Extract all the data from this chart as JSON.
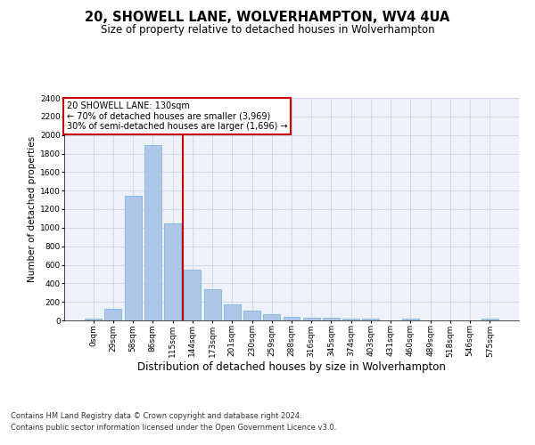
{
  "title": "20, SHOWELL LANE, WOLVERHAMPTON, WV4 4UA",
  "subtitle": "Size of property relative to detached houses in Wolverhampton",
  "xlabel": "Distribution of detached houses by size in Wolverhampton",
  "ylabel": "Number of detached properties",
  "bar_values": [
    15,
    125,
    1340,
    1890,
    1045,
    545,
    335,
    170,
    110,
    65,
    40,
    30,
    25,
    18,
    18,
    0,
    20,
    0,
    0,
    0,
    15
  ],
  "x_labels": [
    "0sqm",
    "29sqm",
    "58sqm",
    "86sqm",
    "115sqm",
    "144sqm",
    "173sqm",
    "201sqm",
    "230sqm",
    "259sqm",
    "288sqm",
    "316sqm",
    "345sqm",
    "374sqm",
    "403sqm",
    "431sqm",
    "460sqm",
    "489sqm",
    "518sqm",
    "546sqm",
    "575sqm"
  ],
  "bar_color": "#aec6e8",
  "bar_edge_color": "#6baed6",
  "vline_x": 4.5,
  "vline_color": "#cc0000",
  "annotation_line1": "20 SHOWELL LANE: 130sqm",
  "annotation_line2": "← 70% of detached houses are smaller (3,969)",
  "annotation_line3": "30% of semi-detached houses are larger (1,696) →",
  "annotation_box_color": "#cc0000",
  "ylim": [
    0,
    2400
  ],
  "yticks": [
    0,
    200,
    400,
    600,
    800,
    1000,
    1200,
    1400,
    1600,
    1800,
    2000,
    2200,
    2400
  ],
  "grid_color": "#d0d8e8",
  "bg_color": "#eef2f8",
  "footer_line1": "Contains HM Land Registry data © Crown copyright and database right 2024.",
  "footer_line2": "Contains public sector information licensed under the Open Government Licence v3.0.",
  "title_fontsize": 10.5,
  "subtitle_fontsize": 8.5,
  "xlabel_fontsize": 8.5,
  "ylabel_fontsize": 7.5,
  "tick_fontsize": 6.5,
  "annot_fontsize": 7,
  "footer_fontsize": 6
}
